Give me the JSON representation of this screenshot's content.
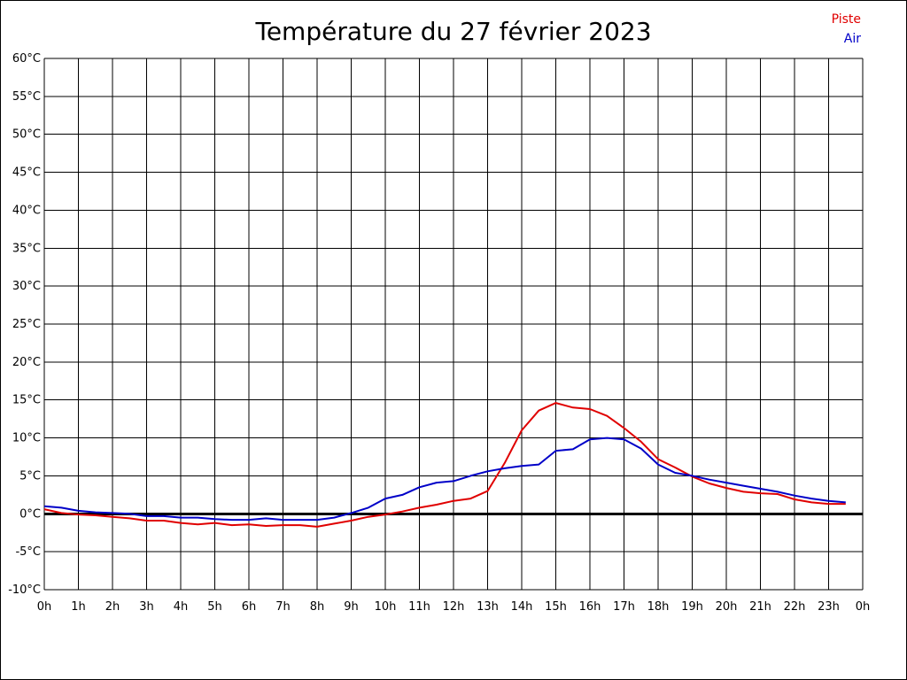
{
  "chart_data": {
    "type": "line",
    "title": "Température du 27 février 2023",
    "xlabel": "",
    "ylabel": "",
    "x_tick_labels": [
      "0h",
      "1h",
      "2h",
      "3h",
      "4h",
      "5h",
      "6h",
      "7h",
      "8h",
      "9h",
      "10h",
      "11h",
      "12h",
      "13h",
      "14h",
      "15h",
      "16h",
      "17h",
      "18h",
      "19h",
      "20h",
      "21h",
      "22h",
      "23h",
      "0h"
    ],
    "y_ticks": [
      -10,
      -5,
      0,
      5,
      10,
      15,
      20,
      25,
      30,
      35,
      40,
      45,
      50,
      55,
      60
    ],
    "y_unit": "°C",
    "xlim": [
      0,
      24
    ],
    "ylim": [
      -10,
      60
    ],
    "grid": true,
    "legend_position": "top-right",
    "zero_line": true,
    "x": [
      0,
      0.5,
      1,
      1.5,
      2,
      2.5,
      3,
      3.5,
      4,
      4.5,
      5,
      5.5,
      6,
      6.5,
      7,
      7.5,
      8,
      8.5,
      9,
      9.5,
      10,
      10.5,
      11,
      11.5,
      12,
      12.5,
      13,
      13.5,
      14,
      14.5,
      15,
      15.5,
      16,
      16.5,
      17,
      17.5,
      18,
      18.5,
      19,
      19.5,
      20,
      20.5,
      21,
      21.5,
      22,
      22.5,
      23,
      23.5
    ],
    "series": [
      {
        "name": "Piste",
        "color": "#e00000",
        "values": [
          0.6,
          0.1,
          -0.1,
          -0.2,
          -0.4,
          -0.6,
          -0.9,
          -0.9,
          -1.2,
          -1.4,
          -1.2,
          -1.5,
          -1.4,
          -1.6,
          -1.5,
          -1.5,
          -1.7,
          -1.3,
          -0.9,
          -0.4,
          -0.1,
          0.3,
          0.8,
          1.2,
          1.7,
          2.0,
          3.0,
          6.7,
          11.0,
          13.6,
          14.6,
          14.0,
          13.8,
          12.9,
          11.3,
          9.5,
          7.2,
          6.1,
          4.9,
          4.0,
          3.4,
          2.9,
          2.7,
          2.6,
          1.9,
          1.5,
          1.3,
          1.3
        ]
      },
      {
        "name": "Air",
        "color": "#0000c8",
        "values": [
          1.0,
          0.8,
          0.4,
          0.2,
          0.1,
          0.0,
          -0.3,
          -0.3,
          -0.5,
          -0.5,
          -0.7,
          -0.8,
          -0.8,
          -0.6,
          -0.8,
          -0.8,
          -0.8,
          -0.5,
          0.1,
          0.8,
          2.0,
          2.5,
          3.5,
          4.1,
          4.3,
          5.0,
          5.6,
          6.0,
          6.3,
          6.5,
          8.3,
          8.5,
          9.8,
          10.0,
          9.8,
          8.6,
          6.5,
          5.4,
          5.0,
          4.5,
          4.1,
          3.7,
          3.3,
          2.9,
          2.4,
          2.0,
          1.7,
          1.5
        ]
      }
    ]
  }
}
